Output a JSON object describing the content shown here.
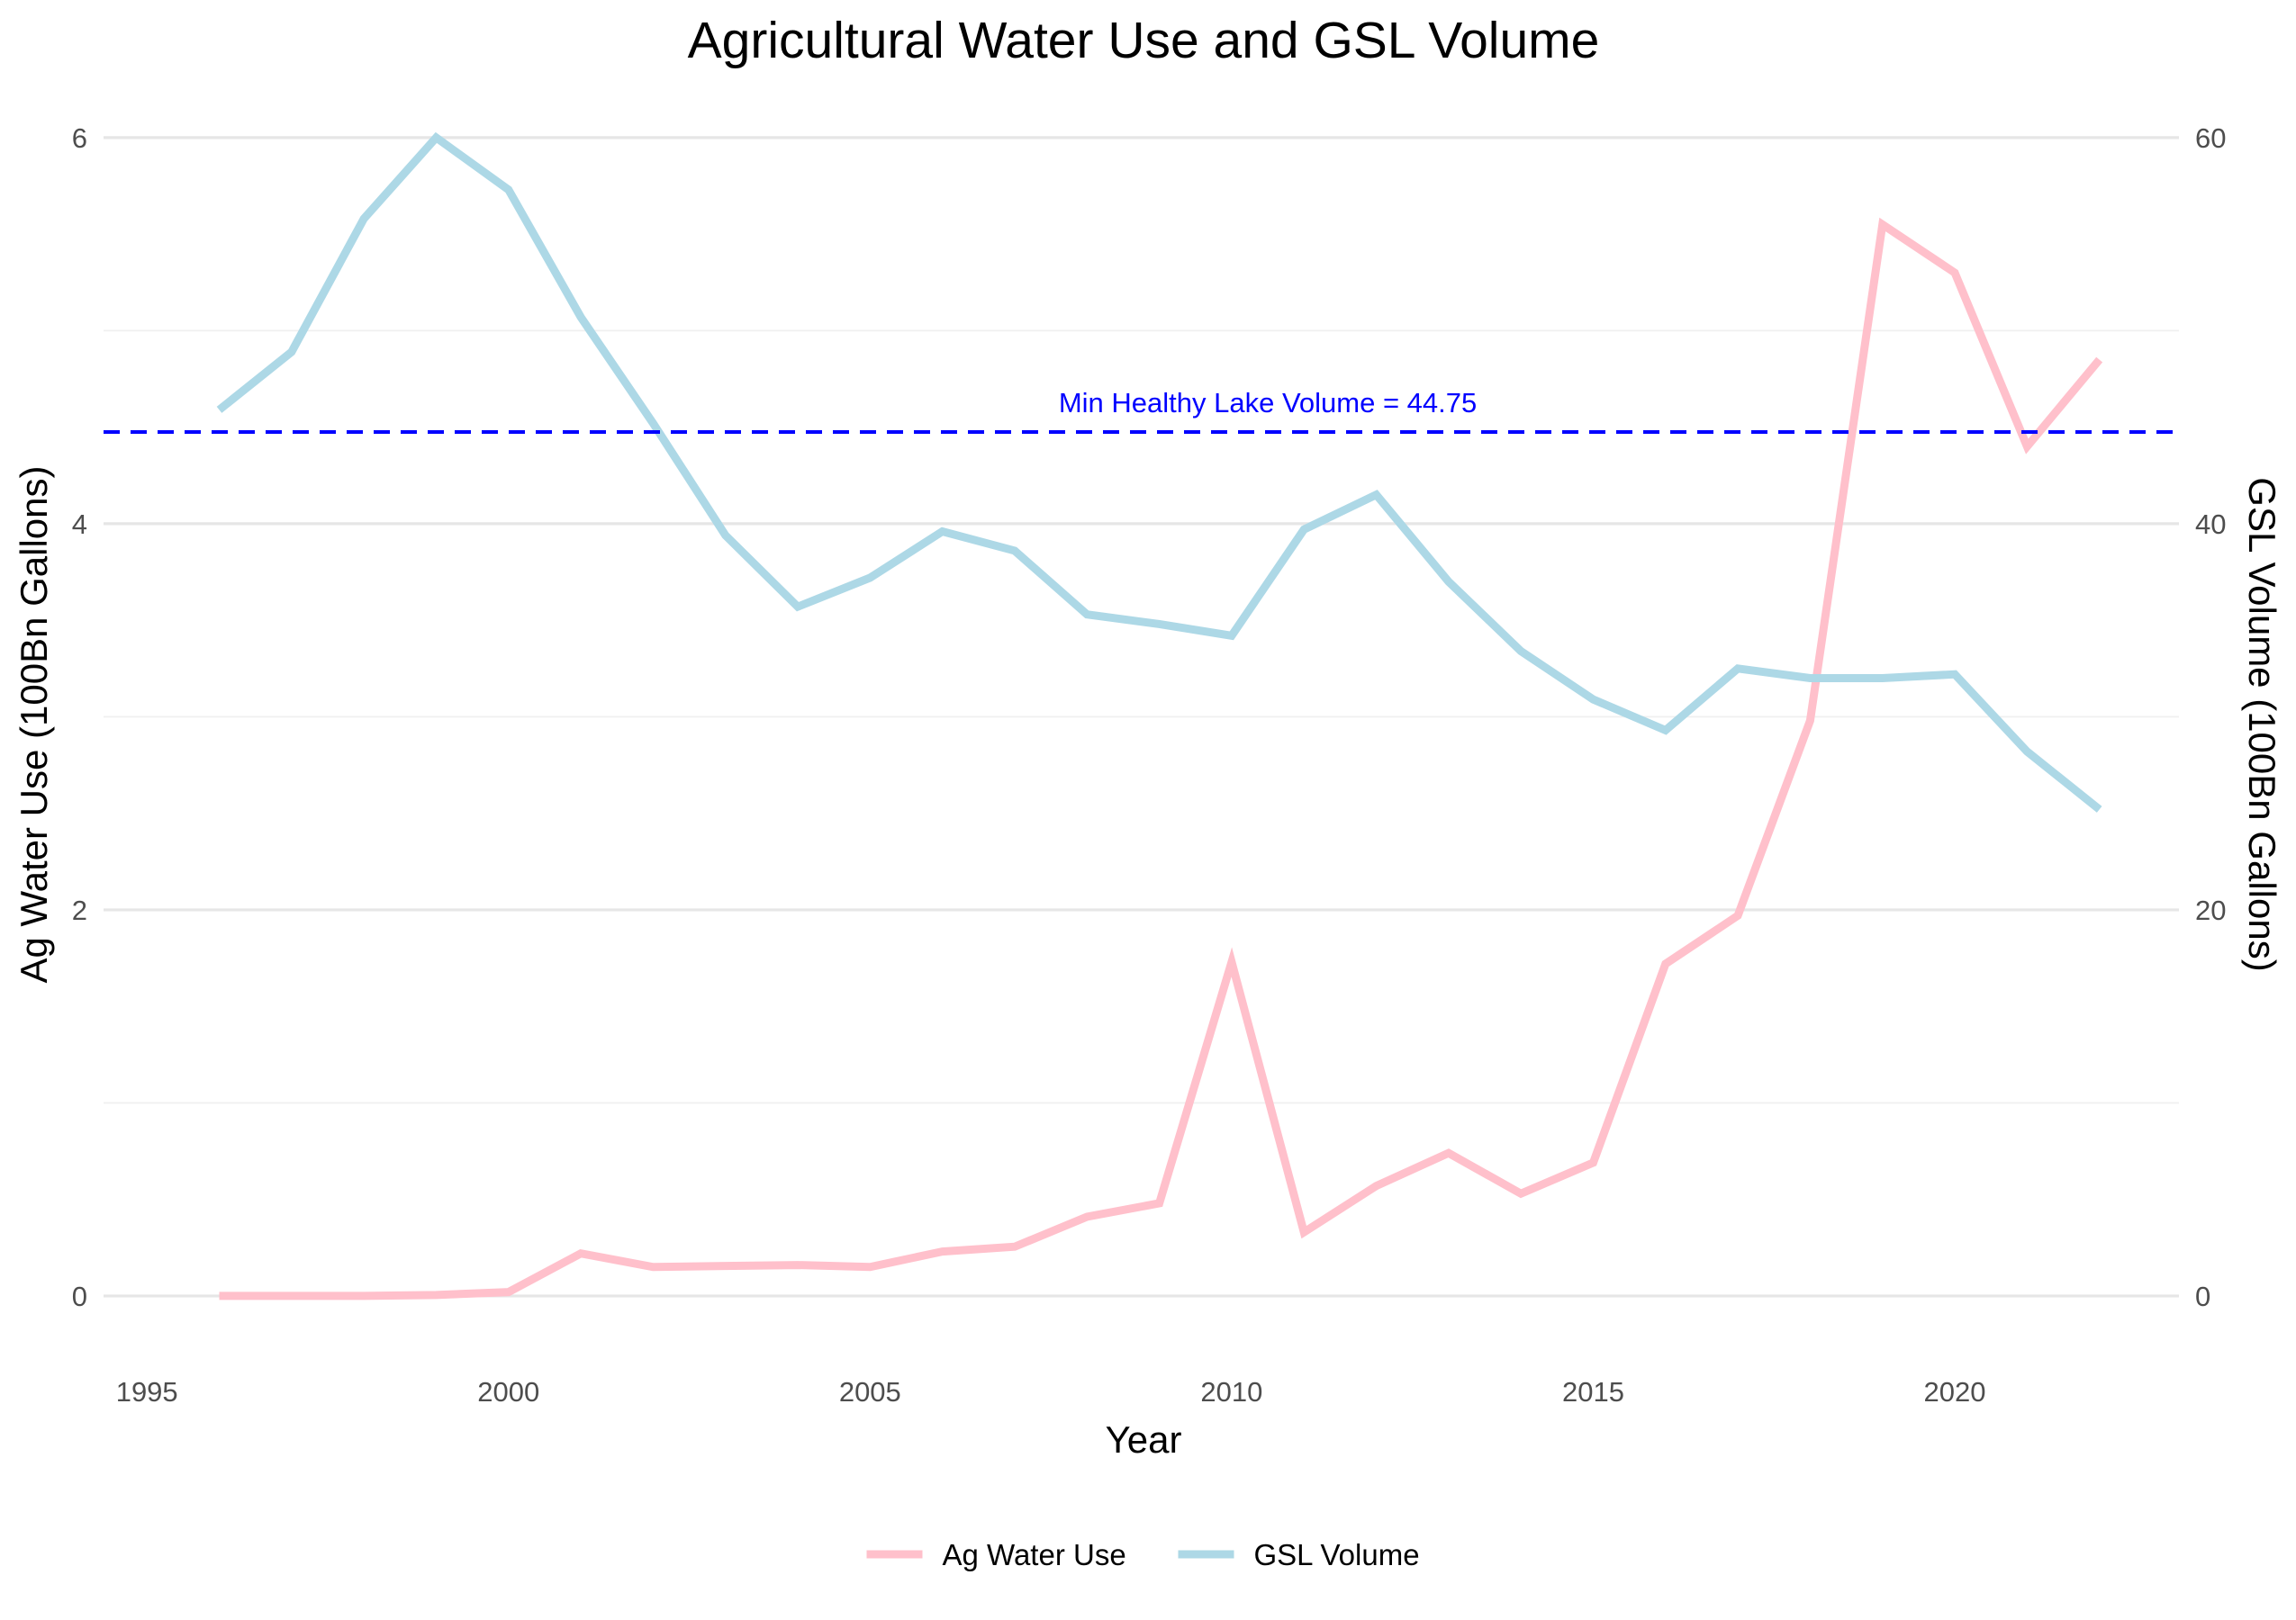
{
  "chart_data": {
    "type": "line",
    "title": "Agricultural Water Use and GSL Volume",
    "xlabel": "Year",
    "ylabel_left": "Ag Water Use (100Bn Gallons)",
    "ylabel_right": "GSL Volume (100Bn Gallons)",
    "xlim": [
      1994.4,
      2023.1
    ],
    "ylim_left": [
      -0.35,
      6.2
    ],
    "ylim_right": [
      -3.5,
      62
    ],
    "x_ticks": [
      1995,
      2000,
      2005,
      2010,
      2015,
      2020
    ],
    "x_tick_labels": [
      "1995",
      "2000",
      "2005",
      "2010",
      "2015",
      "2020"
    ],
    "y_left_ticks": [
      0,
      2,
      4,
      6
    ],
    "y_left_tick_labels": [
      "0",
      "2",
      "4",
      "6"
    ],
    "y_right_ticks": [
      0,
      20,
      40,
      60
    ],
    "y_right_tick_labels": [
      "0",
      "20",
      "40",
      "60"
    ],
    "grid": true,
    "legend_position": "bottom",
    "series": [
      {
        "name": "Ag Water Use",
        "axis": "left",
        "color": "#FFC0CB",
        "x": [
          1996,
          1997,
          1998,
          1999,
          2000,
          2001,
          2002,
          2003,
          2004,
          2005,
          2006,
          2007,
          2008,
          2009,
          2010,
          2011,
          2012,
          2013,
          2014,
          2015,
          2016,
          2017,
          2018,
          2019,
          2020,
          2021,
          2022
        ],
        "values": [
          0.0,
          0.0,
          0.0,
          0.005,
          0.02,
          0.22,
          0.15,
          0.155,
          0.16,
          0.15,
          0.23,
          0.255,
          0.41,
          0.48,
          1.73,
          0.33,
          0.57,
          0.74,
          0.53,
          0.69,
          1.72,
          1.97,
          2.98,
          5.55,
          5.3,
          4.4,
          4.85
        ]
      },
      {
        "name": "GSL Volume",
        "axis": "right",
        "color": "#ADD8E6",
        "x": [
          1996,
          1997,
          1998,
          1999,
          2000,
          2001,
          2002,
          2003,
          2004,
          2005,
          2006,
          2007,
          2008,
          2009,
          2010,
          2011,
          2012,
          2013,
          2014,
          2015,
          2016,
          2017,
          2018,
          2019,
          2020,
          2021,
          2022
        ],
        "values": [
          45.9,
          48.9,
          55.8,
          60.0,
          57.3,
          50.7,
          45.2,
          39.4,
          35.7,
          37.2,
          39.6,
          38.6,
          35.3,
          34.8,
          34.2,
          39.7,
          41.5,
          37.0,
          33.4,
          30.9,
          29.3,
          32.5,
          32.0,
          32.0,
          32.2,
          28.2,
          25.2
        ]
      }
    ],
    "reference_line": {
      "axis": "right",
      "value": 44.75,
      "style": "dashed",
      "color": "#0000FF",
      "label": "Min Healthy Lake Volume = 44.75",
      "label_x": 2010.5
    }
  }
}
